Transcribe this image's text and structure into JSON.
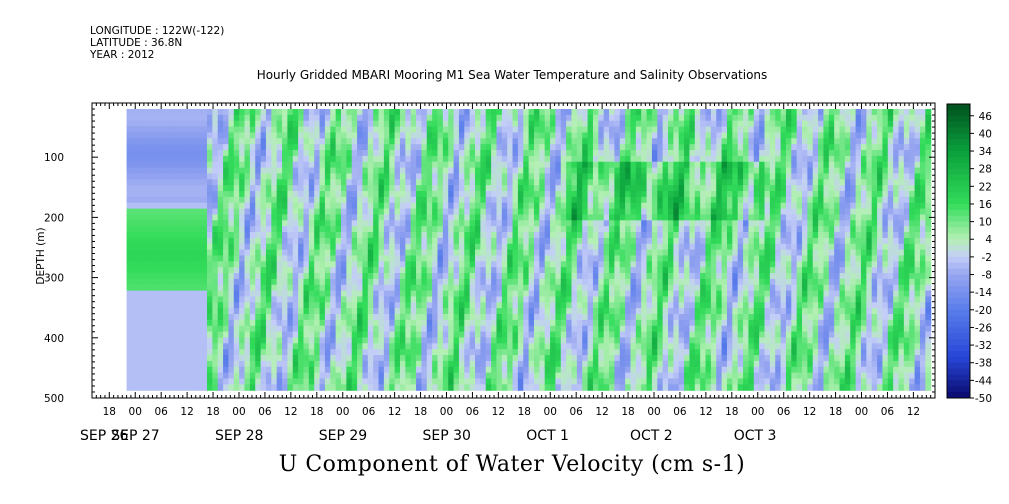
{
  "header": {
    "longitude": "LONGITUDE : 122W(-122)",
    "latitude": "LATITUDE : 36.8N",
    "year": "YEAR : 2012"
  },
  "chart_data": {
    "type": "heatmap",
    "title": "Hourly Gridded MBARI Mooring M1 Sea Water Temperature and Salinity Observations",
    "xlabel": "U Component of Water Velocity (cm s-1)",
    "ylabel": "DEPTH (m)",
    "y_ticks": [
      "100",
      "200",
      "300",
      "400",
      "500"
    ],
    "y_tick_values": [
      100,
      200,
      300,
      400,
      500
    ],
    "ylim": [
      500,
      10
    ],
    "data_depth_range": [
      20,
      487
    ],
    "x_hour_ticks": [
      "18",
      "00",
      "06",
      "12",
      "18",
      "00",
      "06",
      "12",
      "18",
      "00",
      "06",
      "12",
      "18",
      "00",
      "06",
      "12",
      "18",
      "00",
      "06",
      "12",
      "18",
      "00",
      "06",
      "12",
      "18",
      "00",
      "06",
      "12",
      "18",
      "00",
      "06",
      "12"
    ],
    "x_hour_values": [
      -6,
      0,
      6,
      12,
      18,
      24,
      30,
      36,
      42,
      48,
      54,
      60,
      66,
      72,
      78,
      84,
      90,
      96,
      102,
      108,
      114,
      120,
      126,
      132,
      138,
      144,
      150,
      156,
      162,
      168,
      174,
      180
    ],
    "x_date_labels": [
      "SEP 26",
      "SEP 27",
      "SEP 28",
      "SEP 29",
      "SEP 30",
      "OCT  1",
      "OCT  2",
      "OCT  3"
    ],
    "x_date_values": [
      -30,
      0,
      24,
      48,
      72,
      96,
      120,
      144
    ],
    "x_date_anchor_hours": [
      -30,
      0,
      24,
      48,
      72,
      96,
      120,
      144
    ],
    "xlim": [
      -10,
      185
    ],
    "data_time_range": [
      -2,
      184
    ],
    "colorbar_labels": [
      "46",
      "40",
      "34",
      "28",
      "22",
      "16",
      "10",
      "4",
      "-2",
      "-8",
      "-14",
      "-20",
      "-26",
      "-32",
      "-38",
      "-44",
      "-50"
    ],
    "colorbar_values": [
      46,
      40,
      34,
      28,
      22,
      16,
      10,
      4,
      -2,
      -8,
      -14,
      -20,
      -26,
      -32,
      -38,
      -44,
      -50
    ],
    "colorbar_range": [
      -50,
      50
    ],
    "grid": false
  }
}
